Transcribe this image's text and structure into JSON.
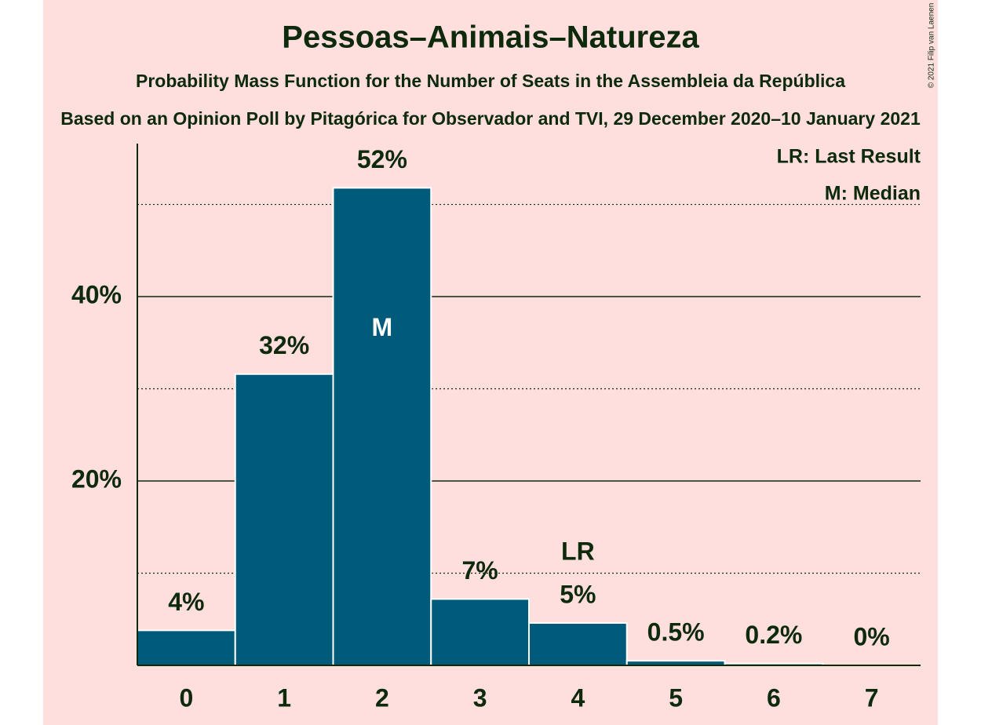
{
  "chart_data": {
    "type": "bar",
    "title": "Pessoas–Animais–Natureza",
    "subtitle": "Probability Mass Function for the Number of Seats in the Assembleia da República",
    "subtitle2": "Based on an Opinion Poll by Pitagórica for Observador and TVI, 29 December 2020–10 January 2021",
    "credit": "© 2021 Filip van Laenen",
    "categories": [
      "0",
      "1",
      "2",
      "3",
      "4",
      "5",
      "6",
      "7"
    ],
    "values": [
      3.8,
      31.6,
      51.8,
      7.2,
      4.6,
      0.5,
      0.2,
      0
    ],
    "value_labels": [
      "4%",
      "32%",
      "52%",
      "7%",
      "5%",
      "0.5%",
      "0.2%",
      "0%"
    ],
    "color": "#005b7a",
    "ylim": [
      0,
      56.6
    ],
    "yticks": [
      {
        "value": 20,
        "label": "20%"
      },
      {
        "value": 40,
        "label": "40%"
      }
    ],
    "minor_yticks": [
      10,
      30,
      50
    ],
    "grid": true,
    "annotations": [
      {
        "text": "M",
        "category": "2"
      },
      {
        "text": "LR",
        "category": "4"
      }
    ],
    "legend": [
      "LR: Last Result",
      "M: Median"
    ]
  }
}
